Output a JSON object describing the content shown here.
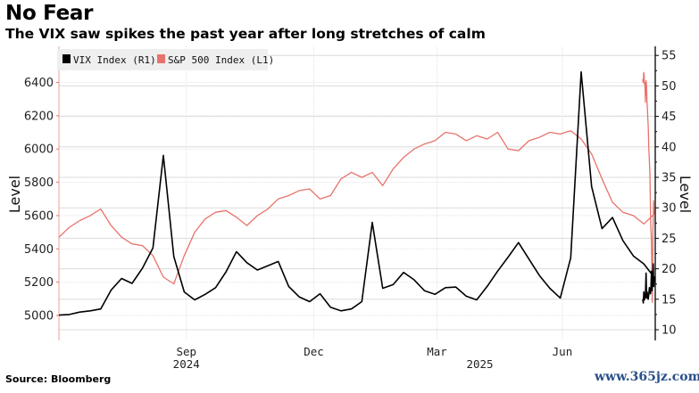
{
  "header": {
    "title": "No Fear",
    "subtitle": "The VIX saw spikes the past year after long stretches of calm"
  },
  "footer": {
    "source": "Source: Bloomberg",
    "watermark": "www.365jz.com"
  },
  "colors": {
    "vix": "#000000",
    "spx": "#e8736b",
    "grid": "#d9d9d9",
    "legend_bg": "#efefef"
  },
  "chart_data": {
    "type": "line",
    "title": "No Fear",
    "subtitle": "The VIX saw spikes the past year after long stretches of calm",
    "legend": [
      "VIX Index (R1)",
      "S&P 500 Index (L1)"
    ],
    "legend_position": "top-left",
    "left_axis": {
      "label": "Level",
      "ylim": [
        4880,
        6580
      ],
      "ticks": [
        5000,
        5200,
        5400,
        5600,
        5800,
        6000,
        6200,
        6400
      ]
    },
    "right_axis": {
      "label": "Level",
      "ylim": [
        9,
        56
      ],
      "ticks": [
        10,
        15,
        20,
        25,
        30,
        35,
        40,
        45,
        50,
        55
      ]
    },
    "x_axis": {
      "month_ticks": [
        {
          "label": "Sep",
          "index": 12.2
        },
        {
          "label": "Dec",
          "index": 24.4
        },
        {
          "label": "Mar",
          "index": 36.2
        },
        {
          "label": "Jun",
          "index": 48.2
        }
      ],
      "year_labels": [
        {
          "label": "2024",
          "index": 12.2
        },
        {
          "label": "2025",
          "index": 40.3
        }
      ],
      "n_points": 58
    },
    "grid": true,
    "series": [
      {
        "name": "VIX Index",
        "axis": "right",
        "values": [
          12.4,
          12.5,
          12.9,
          13.1,
          13.4,
          16.5,
          18.4,
          17.6,
          20.1,
          23.4,
          38.6,
          22.0,
          16.2,
          14.9,
          15.8,
          16.9,
          19.5,
          22.8,
          21.0,
          19.8,
          20.5,
          21.2,
          17.1,
          15.4,
          14.6,
          15.9,
          13.7,
          13.1,
          13.4,
          14.6,
          27.6,
          16.8,
          17.4,
          19.4,
          18.2,
          16.4,
          15.8,
          16.9,
          17.0,
          15.5,
          14.9,
          17.1,
          19.6,
          21.9,
          24.3,
          21.6,
          18.9,
          16.8,
          15.2,
          21.8,
          52.3,
          33.5,
          26.6,
          28.4,
          24.6,
          22.1,
          20.8,
          18.6
        ],
        "tail_values": [
          17.1,
          20.8,
          17.6,
          16.4,
          19.6,
          17.1,
          15.9,
          16.4,
          16.9,
          15.8,
          15.0,
          15.5,
          16.2,
          15.2,
          19.3,
          16.1,
          15.2,
          14.9,
          16.2,
          14.4,
          15.0
        ]
      },
      {
        "name": "S&P 500 Index",
        "axis": "left",
        "values": [
          5470,
          5530,
          5570,
          5600,
          5640,
          5540,
          5470,
          5430,
          5420,
          5360,
          5230,
          5190,
          5360,
          5500,
          5580,
          5620,
          5630,
          5590,
          5540,
          5600,
          5640,
          5700,
          5720,
          5750,
          5760,
          5700,
          5720,
          5820,
          5860,
          5830,
          5860,
          5780,
          5880,
          5950,
          6000,
          6030,
          6050,
          6100,
          6090,
          6050,
          6080,
          6060,
          6100,
          6000,
          5990,
          6050,
          6070,
          6100,
          6090,
          6110,
          6060,
          5970,
          5820,
          5680,
          5620,
          5600,
          5550,
          5610
        ],
        "tail_values": [
          5640,
          5690,
          5580,
          5520,
          5230,
          5080,
          5290,
          5390,
          5480,
          5520,
          5610,
          5760,
          5860,
          5900,
          5960,
          6000,
          6060,
          6140,
          6180,
          6230,
          6270,
          6310,
          6380,
          6410,
          6380,
          6280,
          6340,
          6400,
          6390,
          6450,
          6460,
          6420,
          6400,
          6420
        ]
      }
    ]
  }
}
